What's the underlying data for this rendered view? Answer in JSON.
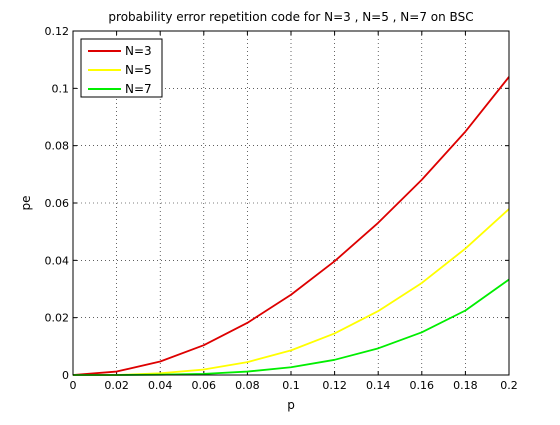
{
  "chart_data": {
    "type": "line",
    "title": "probability error repetition code for N=3 , N=5 , N=7 on BSC",
    "xlabel": "p",
    "ylabel": "pe",
    "xlim": [
      0,
      0.2
    ],
    "ylim": [
      0,
      0.12
    ],
    "xticks": [
      "0",
      "0.02",
      "0.04",
      "0.06",
      "0.08",
      "0.1",
      "0.12",
      "0.14",
      "0.16",
      "0.18",
      "0.2"
    ],
    "yticks": [
      "0",
      "0.02",
      "0.04",
      "0.06",
      "0.08",
      "0.1",
      "0.12"
    ],
    "grid": true,
    "legend_position": "top-left",
    "x": [
      0,
      0.02,
      0.04,
      0.06,
      0.08,
      0.1,
      0.12,
      0.14,
      0.16,
      0.18,
      0.2
    ],
    "series": [
      {
        "name": "N=3",
        "color": "#dd0000",
        "values": [
          0,
          0.0012,
          0.0047,
          0.0104,
          0.0182,
          0.028,
          0.0397,
          0.0531,
          0.0681,
          0.0849,
          0.104
        ]
      },
      {
        "name": "N=5",
        "color": "#ffff00",
        "values": [
          0,
          0.0,
          0.0006,
          0.0019,
          0.0045,
          0.0086,
          0.0145,
          0.0223,
          0.0321,
          0.0441,
          0.0579
        ]
      },
      {
        "name": "N=7",
        "color": "#00ee00",
        "values": [
          0,
          0.0,
          0.0001,
          0.0004,
          0.0012,
          0.0027,
          0.0053,
          0.0093,
          0.0149,
          0.0225,
          0.0333
        ]
      }
    ]
  }
}
